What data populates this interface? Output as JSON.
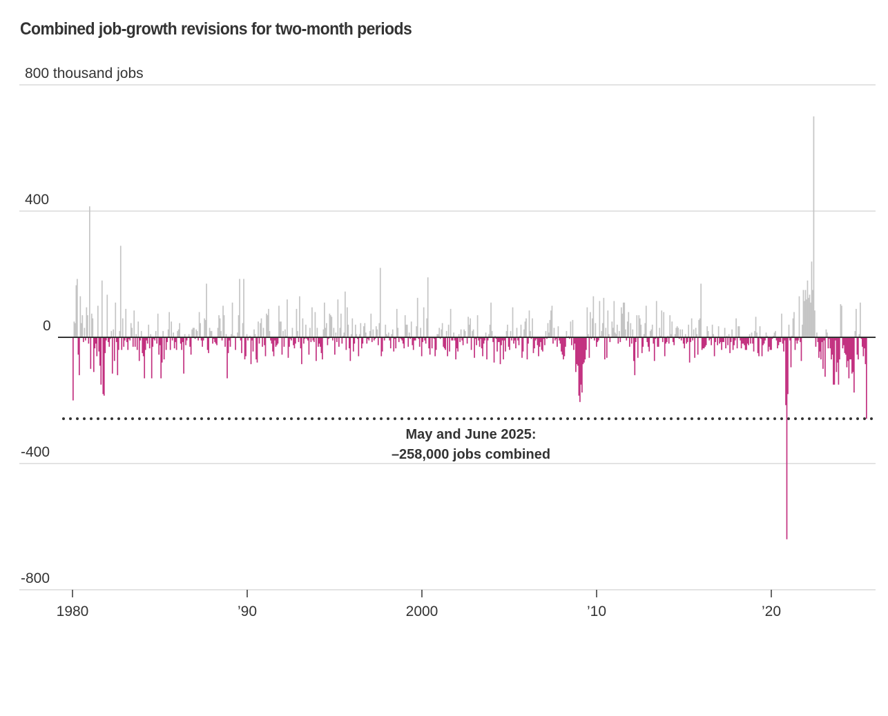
{
  "chart_data": {
    "type": "bar",
    "title": "Combined job-growth revisions for two-month periods",
    "ylabel": "thousand jobs",
    "ylim": [
      -800,
      800
    ],
    "yticks": [
      {
        "value": 800,
        "label": "800 thousand jobs"
      },
      {
        "value": 400,
        "label": "400"
      },
      {
        "value": 0,
        "label": "0"
      },
      {
        "value": -400,
        "label": "-400"
      },
      {
        "value": -800,
        "label": "-800"
      }
    ],
    "xticks": [
      {
        "year": 1980,
        "label": "1980"
      },
      {
        "year": 1990,
        "label": "’90"
      },
      {
        "year": 2000,
        "label": "2000"
      },
      {
        "year": 2010,
        "label": "’10"
      },
      {
        "year": 2020,
        "label": "’20"
      }
    ],
    "x_start": "1980-01",
    "x_end": "2025-06",
    "frequency": "monthly",
    "colors": {
      "positive": "#c4c4c4",
      "negative": "#c2307f",
      "zero_line": "#333333",
      "grid": "#e3e3e3",
      "reference_line": "#333333"
    },
    "reference_line": {
      "value": -258,
      "style": "dotted"
    },
    "annotation": {
      "line1": "May and June 2025:",
      "line2": "–258,000 jobs combined"
    },
    "values": [
      -200,
      50,
      45,
      165,
      185,
      -55,
      -120,
      130,
      45,
      70,
      -15,
      30,
      -10,
      95,
      70,
      -20,
      415,
      -100,
      75,
      60,
      -110,
      -35,
      -20,
      -60,
      100,
      -45,
      -90,
      -150,
      180,
      -180,
      -185,
      -50,
      -10,
      135,
      -15,
      -30,
      -5,
      20,
      -115,
      25,
      -75,
      110,
      -15,
      -120,
      -40,
      20,
      290,
      -40,
      60,
      -30,
      -10,
      90,
      -15,
      -40,
      -5,
      -10,
      45,
      30,
      -30,
      85,
      -30,
      10,
      -40,
      50,
      -75,
      -10,
      20,
      -50,
      -60,
      -130,
      -40,
      -10,
      -20,
      40,
      -35,
      10,
      -130,
      -30,
      -5,
      -10,
      20,
      -20,
      75,
      -55,
      -25,
      -130,
      -80,
      20,
      -70,
      0,
      -40,
      -15,
      25,
      80,
      -40,
      50,
      -10,
      15,
      -35,
      -15,
      -40,
      20,
      25,
      45,
      -20,
      -40,
      -15,
      -115,
      10,
      -25,
      -10,
      0,
      10,
      -30,
      -55,
      25,
      30,
      30,
      -5,
      25,
      20,
      -10,
      80,
      45,
      -10,
      -30,
      -10,
      60,
      55,
      170,
      -40,
      -50,
      30,
      20,
      20,
      -20,
      -5,
      -15,
      -20,
      -25,
      30,
      70,
      60,
      20,
      -10,
      100,
      70,
      -30,
      10,
      -130,
      -50,
      -10,
      -30,
      10,
      110,
      5,
      5,
      -40,
      0,
      15,
      70,
      185,
      -10,
      -50,
      45,
      185,
      -70,
      -60,
      10,
      -10,
      0,
      5,
      -85,
      -10,
      -45,
      25,
      10,
      -70,
      -80,
      50,
      -20,
      45,
      60,
      -30,
      30,
      -25,
      -60,
      75,
      70,
      90,
      20,
      -10,
      -20,
      -45,
      -60,
      -10,
      -30,
      -25,
      -20,
      100,
      50,
      50,
      -55,
      20,
      -30,
      25,
      5,
      120,
      -65,
      -30,
      -5,
      -10,
      30,
      -25,
      -35,
      -20,
      90,
      20,
      -15,
      130,
      -35,
      -85,
      60,
      -20,
      -5,
      40,
      -5,
      -10,
      -55,
      30,
      -15,
      95,
      -10,
      -15,
      80,
      -75,
      30,
      -30,
      -20,
      -30,
      -50,
      -70,
      25,
      110,
      30,
      45,
      -25,
      -5,
      75,
      70,
      65,
      -10,
      30,
      -55,
      15,
      -15,
      120,
      -30,
      30,
      75,
      -20,
      5,
      15,
      145,
      -40,
      95,
      40,
      -35,
      -75,
      10,
      60,
      -45,
      -20,
      40,
      10,
      -5,
      -60,
      10,
      45,
      -35,
      -20,
      35,
      45,
      15,
      -20,
      -5,
      -10,
      20,
      75,
      -15,
      25,
      -10,
      -5,
      35,
      25,
      -25,
      45,
      220,
      -60,
      -45,
      0,
      -10,
      40,
      10,
      5,
      15,
      -10,
      -35,
      10,
      25,
      -45,
      -5,
      -35,
      90,
      30,
      -15,
      0,
      -5,
      -10,
      -20,
      -35,
      70,
      40,
      40,
      -30,
      15,
      -5,
      50,
      -25,
      -40,
      -10,
      -10,
      35,
      125,
      -5,
      -30,
      30,
      -60,
      -15,
      95,
      -10,
      -20,
      60,
      190,
      -35,
      -55,
      0,
      -35,
      0,
      -5,
      -60,
      -40,
      10,
      10,
      30,
      -5,
      25,
      45,
      -30,
      -35,
      -40,
      20,
      -60,
      40,
      -45,
      90,
      -10,
      -10,
      15,
      -10,
      -70,
      -35,
      -45,
      10,
      -15,
      25,
      -10,
      -25,
      25,
      20,
      0,
      -20,
      65,
      40,
      60,
      -40,
      20,
      25,
      -65,
      -5,
      -25,
      70,
      -10,
      -30,
      -5,
      -35,
      -60,
      -20,
      -10,
      15,
      -70,
      -10,
      10,
      40,
      110,
      20,
      -15,
      -80,
      5,
      -5,
      -45,
      -15,
      -15,
      -85,
      -25,
      -10,
      -70,
      -10,
      -45,
      20,
      40,
      -30,
      -40,
      20,
      -10,
      95,
      -20,
      -10,
      -35,
      30,
      -10,
      -25,
      5,
      40,
      -65,
      -45,
      25,
      50,
      60,
      -70,
      -20,
      85,
      20,
      -5,
      60,
      -50,
      -35,
      -10,
      -5,
      -25,
      -60,
      -30,
      -15,
      -40,
      -45,
      -5,
      -25,
      20,
      -5,
      45,
      15,
      55,
      85,
      100,
      -20,
      30,
      -10,
      -5,
      -30,
      35,
      -10,
      -20,
      -45,
      -55,
      -70,
      -60,
      -30,
      20,
      0,
      5,
      -5,
      50,
      -25,
      55,
      -40,
      -20,
      -110,
      -85,
      -90,
      -185,
      -205,
      -150,
      -175,
      -85,
      -80,
      -70,
      -40,
      95,
      10,
      -65,
      80,
      -5,
      60,
      130,
      -10,
      45,
      -30,
      -15,
      -10,
      115,
      5,
      20,
      45,
      125,
      -70,
      30,
      -65,
      85,
      10,
      -15,
      0,
      50,
      30,
      115,
      15,
      10,
      40,
      -20,
      20,
      -15,
      95,
      75,
      110,
      110,
      25,
      -10,
      50,
      80,
      -30,
      45,
      -20,
      25,
      -75,
      -120,
      -15,
      70,
      -65,
      70,
      60,
      40,
      -50,
      -30,
      10,
      45,
      100,
      -15,
      -30,
      -45,
      20,
      25,
      40,
      -20,
      -75,
      -5,
      115,
      -30,
      -30,
      30,
      5,
      85,
      -15,
      80,
      -60,
      -20,
      -15,
      5,
      -20,
      70,
      10,
      50,
      -15,
      -25,
      10,
      30,
      35,
      30,
      -5,
      25,
      -10,
      25,
      -20,
      -35,
      10,
      -20,
      -15,
      40,
      -80,
      -15,
      60,
      -10,
      25,
      -65,
      30,
      10,
      -55,
      55,
      60,
      170,
      -40,
      -35,
      -35,
      -30,
      -25,
      35,
      20,
      -10,
      -5,
      -25,
      40,
      10,
      -60,
      -15,
      0,
      -25,
      35,
      -20,
      -15,
      -40,
      -15,
      -15,
      30,
      -35,
      5,
      -25,
      10,
      -50,
      -15,
      25,
      -40,
      -25,
      -10,
      60,
      -35,
      35,
      35,
      -10,
      -35,
      -20,
      -20,
      -25,
      -40,
      -40,
      -20,
      -25,
      10,
      -20,
      15,
      -20,
      -45,
      20,
      65,
      15,
      -50,
      -60,
      35,
      -5,
      -60,
      -25,
      -20,
      -10,
      15,
      5,
      -45,
      -30,
      -40,
      -40,
      -5,
      5,
      15,
      20,
      -10,
      -35,
      -25,
      -15,
      -15,
      75,
      -20,
      -45,
      -10,
      -215,
      -640,
      -180,
      40,
      -10,
      -95,
      5,
      60,
      80,
      -40,
      -10,
      -20,
      -10,
      130,
      -15,
      -75,
      40,
      150,
      115,
      150,
      120,
      180,
      125,
      135,
      110,
      240,
      150,
      700,
      85,
      -30,
      15,
      -15,
      -65,
      -45,
      -70,
      -15,
      -100,
      -10,
      -125,
      25,
      15,
      -35,
      -5,
      -35,
      -70,
      -55,
      -150,
      -150,
      -10,
      -110,
      -80,
      -150,
      -70,
      105,
      100,
      -35,
      -25,
      -50,
      -55,
      -95,
      -75,
      -130,
      -70,
      -70,
      -115,
      -110,
      -175,
      20,
      90,
      -55,
      -70,
      10,
      110,
      -5,
      -30,
      -60,
      -35,
      -85,
      -258
    ]
  }
}
